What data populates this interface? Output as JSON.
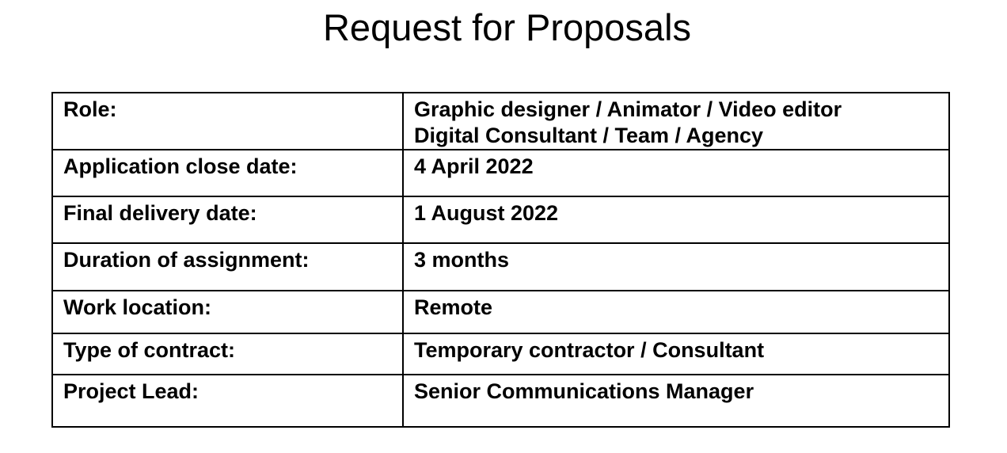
{
  "document": {
    "title": "Request for Proposals"
  },
  "table": {
    "rows": [
      {
        "label": "Role:",
        "value_lines": [
          "Graphic designer / Animator / Video editor",
          "Digital Consultant / Team / Agency"
        ]
      },
      {
        "label": "Application close date:",
        "value": "4 April 2022"
      },
      {
        "label": "Final delivery date:",
        "value": "1 August 2022"
      },
      {
        "label": "Duration of assignment:",
        "value": "3 months"
      },
      {
        "label": "Work location:",
        "value": "Remote"
      },
      {
        "label": "Type of contract:",
        "value": "Temporary contractor / Consultant"
      },
      {
        "label": "Project Lead:",
        "value": "Senior Communications Manager"
      }
    ]
  }
}
